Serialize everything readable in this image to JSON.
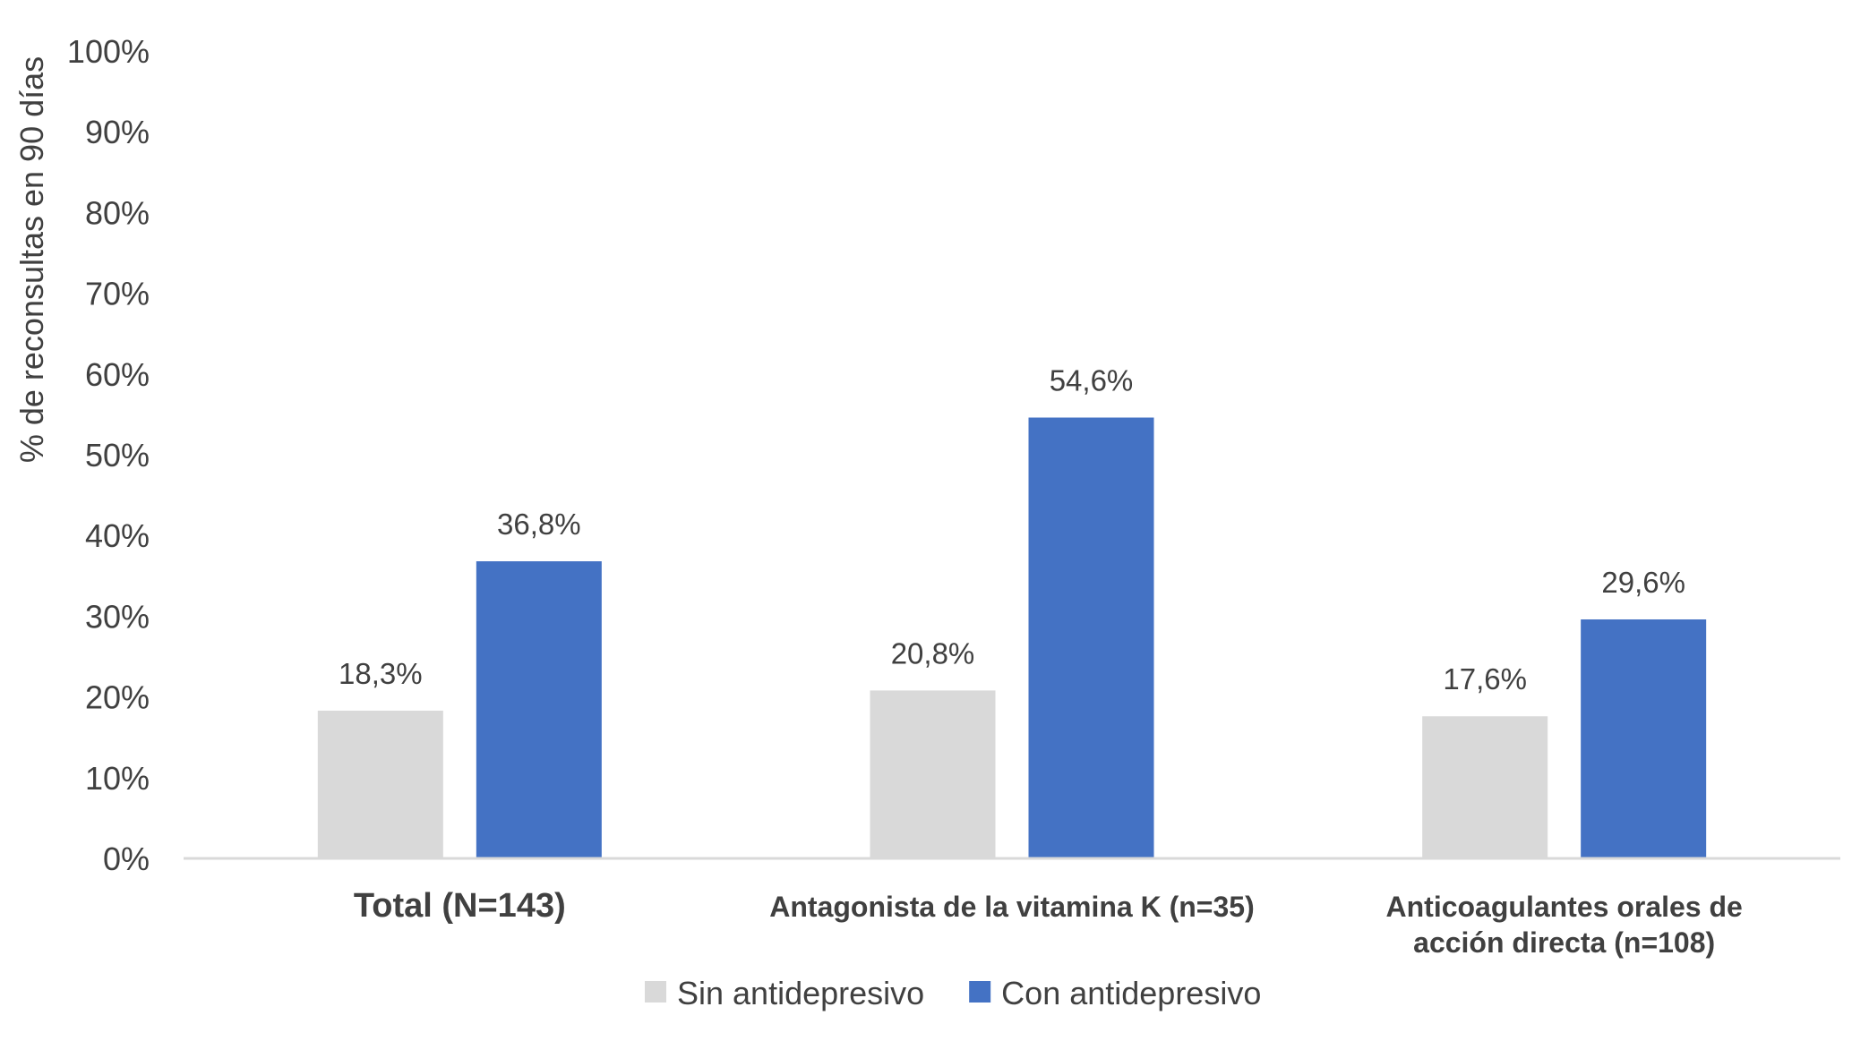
{
  "chart_data": {
    "type": "bar",
    "title": "",
    "xlabel": "",
    "ylabel": "% de reconsultas en 90 días",
    "ylim": [
      0,
      100
    ],
    "ytick_labels": [
      "0%",
      "10%",
      "20%",
      "30%",
      "40%",
      "50%",
      "60%",
      "70%",
      "80%",
      "90%",
      "100%"
    ],
    "categories": [
      "Total (N=143)",
      "Antagonista de la vitamina K (n=35)",
      "Anticoagulantes orales de acción directa (n=108)"
    ],
    "category_lines": [
      [
        "Total (N=143)"
      ],
      [
        "Antagonista de la vitamina K (n=35)"
      ],
      [
        "Anticoagulantes orales de",
        "acción directa (n=108)"
      ]
    ],
    "series": [
      {
        "name": "Sin antidepresivo",
        "color": "#d9d9d9",
        "values": [
          18.3,
          20.8,
          17.6
        ],
        "labels": [
          "18,3%",
          "20,8%",
          "17,6%"
        ]
      },
      {
        "name": "Con antidepresivo",
        "color": "#4472c4",
        "values": [
          36.8,
          54.6,
          29.6
        ],
        "labels": [
          "36,8%",
          "54,6%",
          "29,6%"
        ]
      }
    ],
    "grid": false,
    "legend_position": "bottom"
  }
}
